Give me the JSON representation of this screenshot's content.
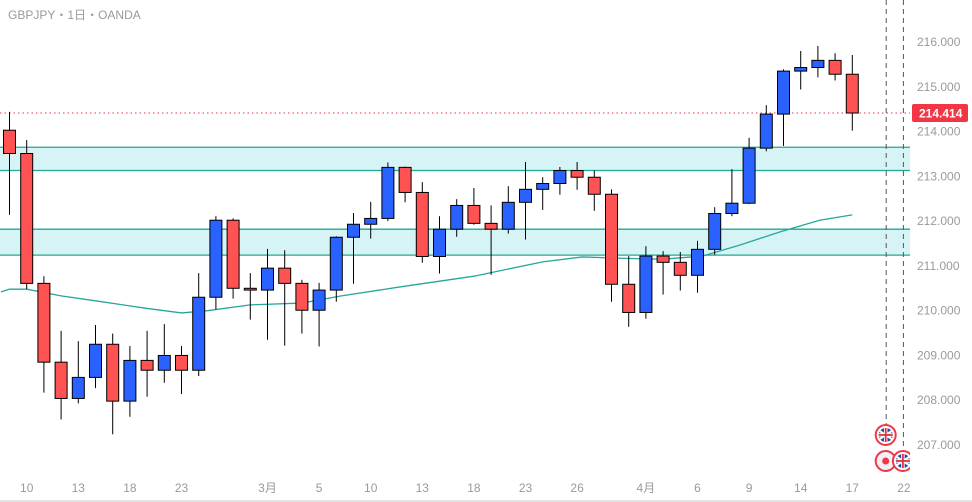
{
  "header": {
    "symbol": "GBPJPY",
    "sep1": "・",
    "interval": "1日",
    "sep2": "・",
    "source": "OANDA"
  },
  "colors": {
    "up": "#2962ff",
    "down": "#ff5252",
    "zone_fill": "#d6f4f6",
    "zone_line": "#22a88f",
    "ma": "#26a69a",
    "last_price": "#f23645"
  },
  "chart_data": {
    "type": "candlestick",
    "title": "GBPJPY・1日・OANDA",
    "ylim": [
      206.6,
      216.5
    ],
    "y_ticks": [
      "216.000",
      "215.000",
      "214.000",
      "213.000",
      "212.000",
      "211.000",
      "210.000",
      "209.000",
      "208.000",
      "207.000"
    ],
    "y_tick_values": [
      216,
      215,
      214,
      213,
      212,
      211,
      210,
      209,
      208,
      207
    ],
    "x_tick_labels": [
      {
        "index": 1,
        "label": "10"
      },
      {
        "index": 4,
        "label": "13"
      },
      {
        "index": 7,
        "label": "18"
      },
      {
        "index": 10,
        "label": "23"
      },
      {
        "index": 15,
        "label": "3月"
      },
      {
        "index": 18,
        "label": "5"
      },
      {
        "index": 21,
        "label": "10"
      },
      {
        "index": 24,
        "label": "13"
      },
      {
        "index": 27,
        "label": "18"
      },
      {
        "index": 30,
        "label": "23"
      },
      {
        "index": 33,
        "label": "26"
      },
      {
        "index": 37,
        "label": "4月"
      },
      {
        "index": 40,
        "label": "6"
      },
      {
        "index": 43,
        "label": "9"
      },
      {
        "index": 46,
        "label": "14"
      },
      {
        "index": 49,
        "label": "17"
      },
      {
        "index": 52,
        "label": "22"
      }
    ],
    "ohlc": [
      [
        214.03,
        214.44,
        212.14,
        213.51
      ],
      [
        213.51,
        213.81,
        210.48,
        210.61
      ],
      [
        210.61,
        210.77,
        208.17,
        208.85
      ],
      [
        208.85,
        209.55,
        207.57,
        208.04
      ],
      [
        208.04,
        209.32,
        207.93,
        208.51
      ],
      [
        208.51,
        209.68,
        208.27,
        209.25
      ],
      [
        209.25,
        209.49,
        207.24,
        207.98
      ],
      [
        207.98,
        209.21,
        207.63,
        208.89
      ],
      [
        208.89,
        209.55,
        208.08,
        208.67
      ],
      [
        208.67,
        209.7,
        208.39,
        209.0
      ],
      [
        209.0,
        209.21,
        208.14,
        208.67
      ],
      [
        208.67,
        210.84,
        208.54,
        210.3
      ],
      [
        210.3,
        212.11,
        210.03,
        212.02
      ],
      [
        212.02,
        212.06,
        210.27,
        210.5
      ],
      [
        210.5,
        210.84,
        209.8,
        210.46
      ],
      [
        210.46,
        211.38,
        209.35,
        210.95
      ],
      [
        210.95,
        211.35,
        209.22,
        210.61
      ],
      [
        210.61,
        210.69,
        209.49,
        210.01
      ],
      [
        210.01,
        210.62,
        209.2,
        210.46
      ],
      [
        210.46,
        211.66,
        210.2,
        211.64
      ],
      [
        211.64,
        212.18,
        210.6,
        211.93
      ],
      [
        211.93,
        212.43,
        211.61,
        212.06
      ],
      [
        212.06,
        213.31,
        212.0,
        213.2
      ],
      [
        213.2,
        213.22,
        212.42,
        212.64
      ],
      [
        212.64,
        212.87,
        211.07,
        211.21
      ],
      [
        211.21,
        212.11,
        210.83,
        211.82
      ],
      [
        211.82,
        212.49,
        211.65,
        212.35
      ],
      [
        212.35,
        212.74,
        211.92,
        211.95
      ],
      [
        211.95,
        212.35,
        210.8,
        211.82
      ],
      [
        211.82,
        212.78,
        211.72,
        212.42
      ],
      [
        212.42,
        213.32,
        211.59,
        212.71
      ],
      [
        212.71,
        212.98,
        212.25,
        212.84
      ],
      [
        212.84,
        213.21,
        212.59,
        213.13
      ],
      [
        213.13,
        213.32,
        212.7,
        212.98
      ],
      [
        212.98,
        213.13,
        212.23,
        212.6
      ],
      [
        212.6,
        212.71,
        210.2,
        210.59
      ],
      [
        210.59,
        211.22,
        209.64,
        209.96
      ],
      [
        209.96,
        211.44,
        209.82,
        211.22
      ],
      [
        211.22,
        211.33,
        210.36,
        211.08
      ],
      [
        211.08,
        211.31,
        210.45,
        210.79
      ],
      [
        210.79,
        211.56,
        210.4,
        211.37
      ],
      [
        211.37,
        212.31,
        211.25,
        212.17
      ],
      [
        212.17,
        213.16,
        212.11,
        212.4
      ],
      [
        212.4,
        213.86,
        212.38,
        213.63
      ],
      [
        213.63,
        214.59,
        213.56,
        214.39
      ],
      [
        214.39,
        215.39,
        213.68,
        215.35
      ],
      [
        215.35,
        215.8,
        214.94,
        215.43
      ],
      [
        215.43,
        215.91,
        215.21,
        215.59
      ],
      [
        215.59,
        215.75,
        215.14,
        215.28
      ],
      [
        215.28,
        215.71,
        214.02,
        214.414
      ]
    ],
    "moving_average": [
      [
        -0.5,
        210.42
      ],
      [
        0,
        210.48
      ],
      [
        1,
        210.48
      ],
      [
        3,
        210.33
      ],
      [
        5,
        210.22
      ],
      [
        8,
        210.05
      ],
      [
        10,
        209.95
      ],
      [
        11.5,
        210.0
      ],
      [
        14,
        210.13
      ],
      [
        17,
        210.17
      ],
      [
        19.3,
        210.33
      ],
      [
        22.7,
        210.53
      ],
      [
        27,
        210.77
      ],
      [
        31,
        211.09
      ],
      [
        33.3,
        211.2
      ],
      [
        35.5,
        211.17
      ],
      [
        38,
        211.15
      ],
      [
        40.3,
        211.22
      ],
      [
        42.5,
        211.47
      ],
      [
        44.8,
        211.76
      ],
      [
        47.1,
        212.02
      ],
      [
        49,
        212.14
      ]
    ],
    "zones": [
      [
        213.13,
        213.65
      ],
      [
        211.24,
        211.82
      ]
    ],
    "last_price": "214.414",
    "last_price_value": 214.414,
    "vertical_markers_index": [
      51,
      52
    ],
    "events": [
      {
        "type": "uk-flag",
        "index": 51,
        "row": 0
      },
      {
        "type": "red-dot",
        "index": 51,
        "row": 1
      },
      {
        "type": "uk-flag",
        "index": 52,
        "row": 1
      }
    ]
  }
}
